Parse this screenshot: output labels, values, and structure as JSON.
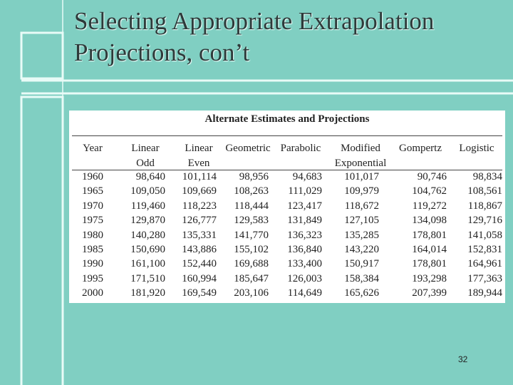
{
  "slide": {
    "title_lines": [
      "Selecting Appropriate Extrapolation",
      "Projections, con’t"
    ],
    "table": {
      "title": "Alternate Estimates and Projections",
      "headers": [
        [
          "Year"
        ],
        [
          "Linear",
          "Odd"
        ],
        [
          "Linear",
          "Even"
        ],
        [
          "Geometric"
        ],
        [
          "Parabolic"
        ],
        [
          "Modified",
          "Exponential"
        ],
        [
          "Gompertz"
        ],
        [
          "Logistic"
        ]
      ],
      "rows": [
        [
          "1960",
          "98,640",
          "101,114",
          "98,956",
          "94,683",
          "101,017",
          "90,746",
          "98,834"
        ],
        [
          "1965",
          "109,050",
          "109,669",
          "108,263",
          "111,029",
          "109,979",
          "104,762",
          "108,561"
        ],
        [
          "1970",
          "119,460",
          "118,223",
          "118,444",
          "123,417",
          "118,672",
          "119,272",
          "118,867"
        ],
        [
          "1975",
          "129,870",
          "126,777",
          "129,583",
          "131,849",
          "127,105",
          "134,098",
          "129,716"
        ],
        [
          "1980",
          "140,280",
          "135,331",
          "141,770",
          "136,323",
          "135,285",
          "178,801",
          "141,058"
        ],
        [
          "1985",
          "150,690",
          "143,886",
          "155,102",
          "136,840",
          "143,220",
          "164,014",
          "152,831"
        ],
        [
          "1990",
          "161,100",
          "152,440",
          "169,688",
          "133,400",
          "150,917",
          "178,801",
          "164,961"
        ],
        [
          "1995",
          "171,510",
          "160,994",
          "185,647",
          "126,003",
          "158,384",
          "193,298",
          "177,363"
        ],
        [
          "2000",
          "181,920",
          "169,549",
          "203,106",
          "114,649",
          "165,626",
          "207,399",
          "189,944"
        ]
      ]
    },
    "page_number": "32"
  }
}
